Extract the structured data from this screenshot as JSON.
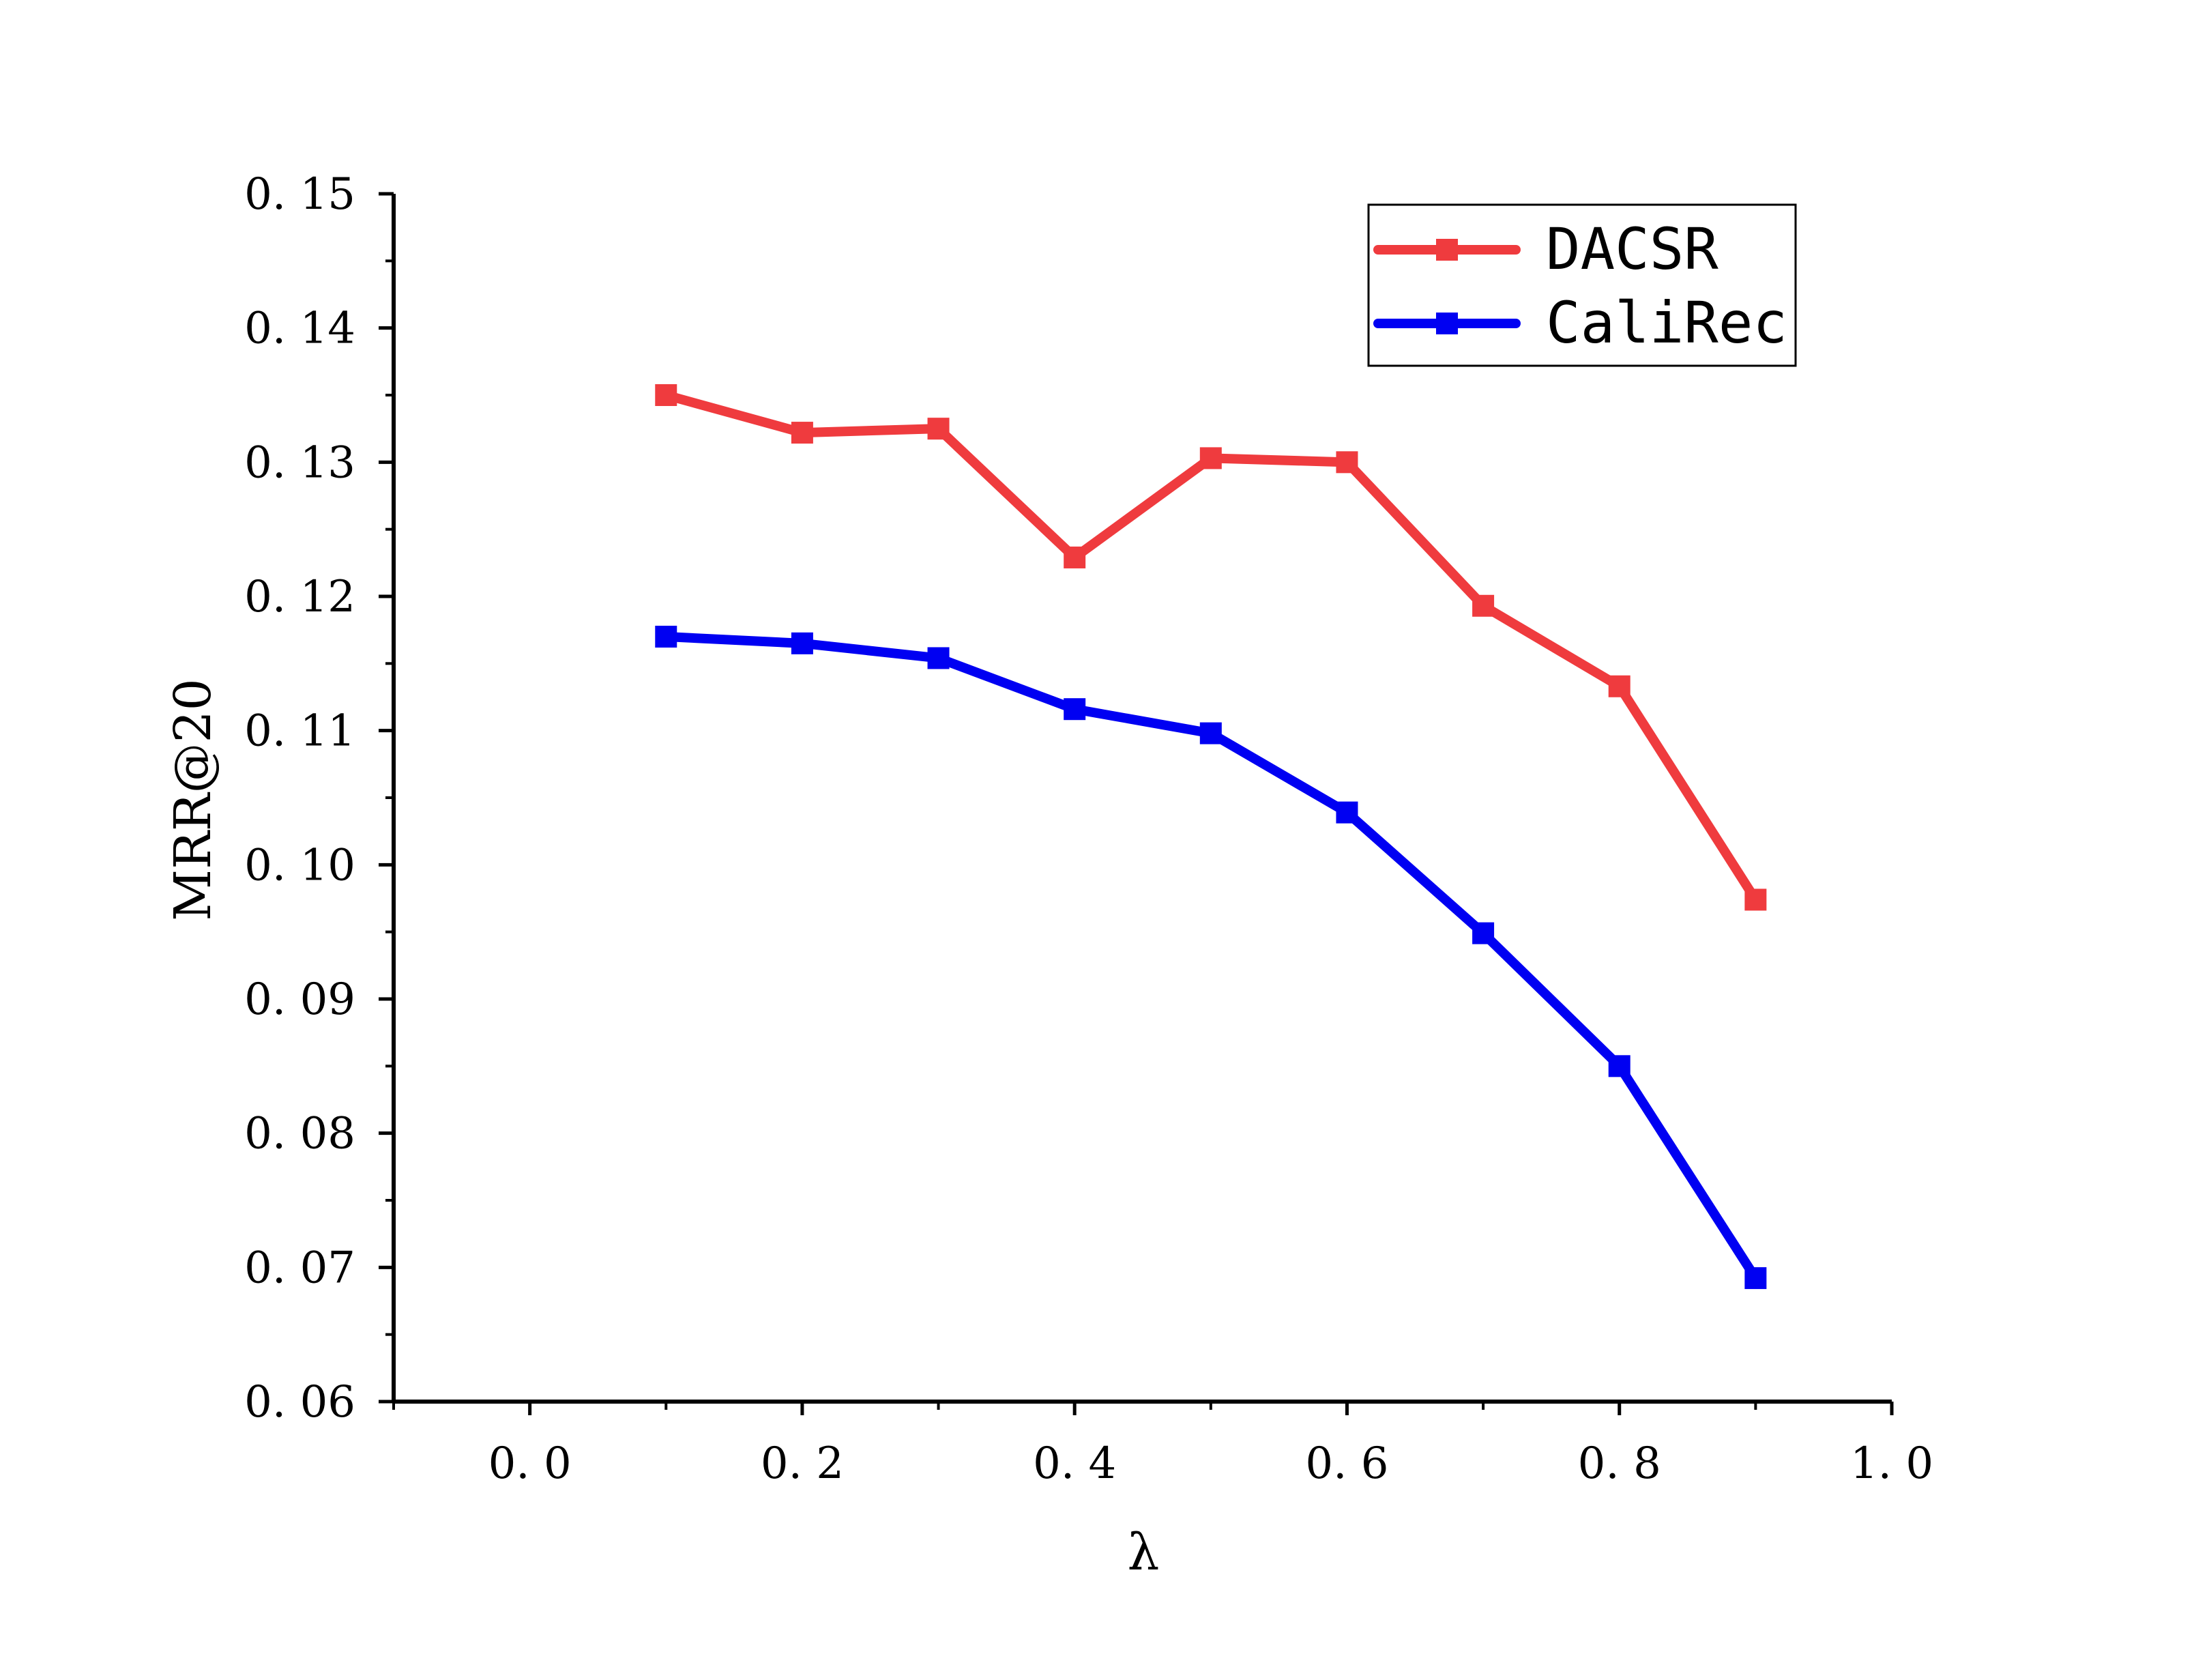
{
  "chart_data": {
    "type": "line",
    "title": "",
    "xlabel": "λ",
    "ylabel": "MRR@20",
    "xlim": [
      -0.1,
      1.0
    ],
    "ylim": [
      0.06,
      0.15
    ],
    "x_ticks": [
      0.0,
      0.2,
      0.4,
      0.6,
      0.8,
      1.0
    ],
    "x_tick_labels": [
      "0. 0",
      "0. 2",
      "0. 4",
      "0. 6",
      "0. 8",
      "1. 0"
    ],
    "y_ticks": [
      0.06,
      0.07,
      0.08,
      0.09,
      0.1,
      0.11,
      0.12,
      0.13,
      0.14,
      0.15
    ],
    "y_tick_labels": [
      "0. 06",
      "0. 07",
      "0. 08",
      "0. 09",
      "0. 10",
      "0. 11",
      "0. 12",
      "0. 13",
      "0. 14",
      "0. 15"
    ],
    "grid": false,
    "legend_position": "top-right",
    "x": [
      0.1,
      0.2,
      0.3,
      0.4,
      0.5,
      0.6,
      0.7,
      0.8,
      0.9
    ],
    "series": [
      {
        "name": "DACSR",
        "color": "#ef3b3e",
        "marker": "square",
        "values": [
          0.135,
          0.1322,
          0.1325,
          0.1229,
          0.1303,
          0.13,
          0.1193,
          0.1133,
          0.0974
        ]
      },
      {
        "name": "CaliRec",
        "color": "#0000f2",
        "marker": "square",
        "values": [
          0.117,
          0.1165,
          0.1154,
          0.1116,
          0.1098,
          0.1039,
          0.0949,
          0.085,
          0.0692
        ]
      }
    ]
  }
}
